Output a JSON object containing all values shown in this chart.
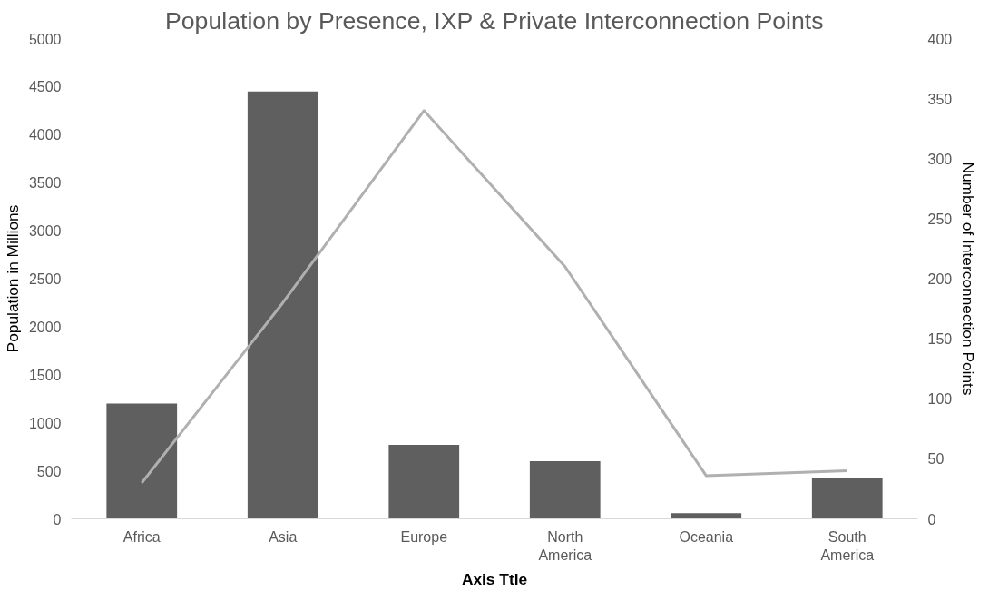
{
  "chart_data": {
    "type": "bar",
    "title": "Population by Presence, IXP & Private Interconnection Points",
    "xlabel": "Axis Ttle",
    "ylabel": "Population in Millions",
    "y2label": "Number of Interconnection Points",
    "categories": [
      "Africa",
      "Asia",
      "Europe",
      "North America",
      "Oceania",
      "South America"
    ],
    "series": [
      {
        "color": "#5f5f5f",
        "values": [
          1200,
          4450,
          770,
          600,
          60,
          430
        ]
      },
      {
        "type": "line",
        "axis": "y2",
        "color": "#b0b0b0",
        "values": [
          30,
          180,
          340,
          210,
          36,
          40
        ]
      }
    ],
    "ylim": [
      0,
      5000
    ],
    "yticks": [
      0,
      500,
      1000,
      1500,
      2000,
      2500,
      3000,
      3500,
      4000,
      4500,
      5000
    ],
    "y2lim": [
      0,
      400
    ],
    "y2ticks": [
      0,
      50,
      100,
      150,
      200,
      250,
      300,
      350,
      400
    ],
    "grid": false
  }
}
